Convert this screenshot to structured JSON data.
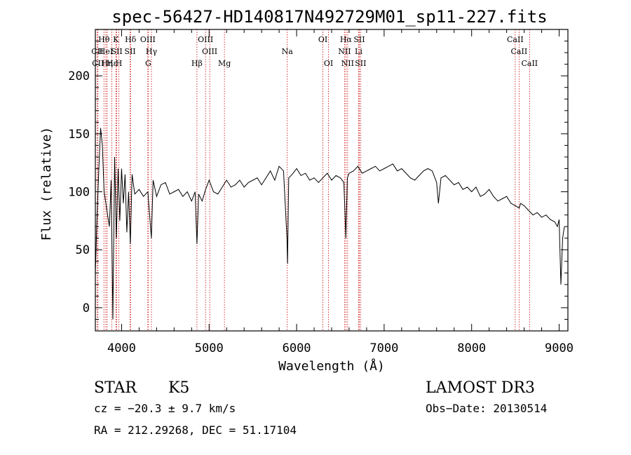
{
  "chart_data": {
    "type": "line",
    "title": "spec-56427-HD140817N492729M01_sp11-227.fits",
    "xlabel": "Wavelength (Å)",
    "ylabel": "Flux (relative)",
    "xlim": [
      3700,
      9100
    ],
    "ylim": [
      -20,
      240
    ],
    "x_ticks": [
      4000,
      5000,
      6000,
      7000,
      8000,
      9000
    ],
    "y_ticks": [
      0,
      50,
      100,
      150,
      200
    ],
    "series": [
      {
        "name": "flux",
        "x": [
          3700,
          3720,
          3740,
          3760,
          3780,
          3800,
          3820,
          3840,
          3860,
          3880,
          3900,
          3920,
          3940,
          3960,
          3980,
          4000,
          4020,
          4040,
          4060,
          4080,
          4100,
          4120,
          4150,
          4200,
          4250,
          4300,
          4340,
          4360,
          4400,
          4450,
          4500,
          4550,
          4600,
          4650,
          4700,
          4750,
          4800,
          4840,
          4861,
          4880,
          4920,
          4960,
          5000,
          5050,
          5100,
          5150,
          5200,
          5250,
          5300,
          5350,
          5400,
          5450,
          5500,
          5550,
          5600,
          5650,
          5700,
          5750,
          5800,
          5850,
          5890,
          5896,
          5910,
          5950,
          6000,
          6050,
          6100,
          6150,
          6200,
          6250,
          6300,
          6350,
          6400,
          6450,
          6500,
          6540,
          6563,
          6580,
          6600,
          6650,
          6700,
          6750,
          6800,
          6850,
          6900,
          6950,
          7000,
          7050,
          7100,
          7150,
          7200,
          7250,
          7300,
          7350,
          7400,
          7450,
          7500,
          7550,
          7600,
          7620,
          7650,
          7700,
          7750,
          7800,
          7850,
          7900,
          7950,
          8000,
          8050,
          8100,
          8150,
          8200,
          8250,
          8300,
          8350,
          8400,
          8450,
          8500,
          8542,
          8560,
          8600,
          8650,
          8700,
          8750,
          8800,
          8850,
          8900,
          8950,
          8980,
          9000,
          9020,
          9040,
          9060
        ],
        "values": [
          30,
          80,
          120,
          155,
          140,
          100,
          90,
          80,
          70,
          110,
          -10,
          130,
          60,
          120,
          75,
          120,
          90,
          115,
          65,
          100,
          55,
          115,
          98,
          102,
          96,
          100,
          60,
          110,
          96,
          106,
          108,
          98,
          100,
          102,
          96,
          100,
          92,
          100,
          55,
          98,
          92,
          102,
          110,
          100,
          98,
          104,
          110,
          104,
          106,
          110,
          104,
          108,
          110,
          112,
          106,
          112,
          118,
          110,
          122,
          118,
          60,
          38,
          112,
          115,
          120,
          114,
          116,
          110,
          112,
          108,
          112,
          116,
          110,
          114,
          112,
          108,
          60,
          112,
          116,
          118,
          122,
          116,
          118,
          120,
          122,
          118,
          120,
          122,
          124,
          118,
          120,
          116,
          112,
          110,
          114,
          118,
          120,
          118,
          108,
          90,
          112,
          114,
          110,
          106,
          108,
          102,
          104,
          100,
          104,
          96,
          98,
          102,
          96,
          92,
          94,
          96,
          90,
          88,
          86,
          90,
          88,
          84,
          80,
          82,
          78,
          80,
          76,
          74,
          70,
          76,
          20,
          60,
          70
        ]
      }
    ],
    "spectral_lines": [
      {
        "label": "CII",
        "wavelength": 3722,
        "row": 2
      },
      {
        "label": "CII",
        "wavelength": 3730,
        "row": 3
      },
      {
        "label": "Hθ",
        "wavelength": 3798,
        "row": 1
      },
      {
        "label": "HeI",
        "wavelength": 3820,
        "row": 2
      },
      {
        "label": "Hη",
        "wavelength": 3835,
        "row": 3
      },
      {
        "label": "Hε",
        "wavelength": 3889,
        "row": 3
      },
      {
        "label": "K",
        "wavelength": 3934,
        "row": 1
      },
      {
        "label": "SII",
        "wavelength": 3945,
        "row": 2
      },
      {
        "label": "H",
        "wavelength": 3969,
        "row": 3
      },
      {
        "label": "Hδ",
        "wavelength": 4102,
        "row": 1
      },
      {
        "label": "SII",
        "wavelength": 4097,
        "row": 2
      },
      {
        "label": "OIII",
        "wavelength": 4300,
        "row": 1
      },
      {
        "label": "Hγ",
        "wavelength": 4341,
        "row": 2
      },
      {
        "label": "G",
        "wavelength": 4304,
        "row": 3
      },
      {
        "label": "Hβ",
        "wavelength": 4861,
        "row": 3
      },
      {
        "label": "OIII",
        "wavelength": 4959,
        "row": 1
      },
      {
        "label": "OIII",
        "wavelength": 5007,
        "row": 2
      },
      {
        "label": "Mg",
        "wavelength": 5175,
        "row": 3
      },
      {
        "label": "Na",
        "wavelength": 5893,
        "row": 2
      },
      {
        "label": "OI",
        "wavelength": 6300,
        "row": 1
      },
      {
        "label": "OI",
        "wavelength": 6364,
        "row": 3
      },
      {
        "label": "Hα",
        "wavelength": 6563,
        "row": 1
      },
      {
        "label": "NII",
        "wavelength": 6548,
        "row": 2
      },
      {
        "label": "NII",
        "wavelength": 6583,
        "row": 3
      },
      {
        "label": "SII",
        "wavelength": 6716,
        "row": 1
      },
      {
        "label": "Li",
        "wavelength": 6708,
        "row": 2
      },
      {
        "label": "SII",
        "wavelength": 6731,
        "row": 3
      },
      {
        "label": "CaII",
        "wavelength": 8498,
        "row": 1
      },
      {
        "label": "CaII",
        "wavelength": 8542,
        "row": 2
      },
      {
        "label": "CaII",
        "wavelength": 8662,
        "row": 3
      }
    ]
  },
  "info": {
    "class": "STAR",
    "subclass": "K5",
    "survey": "LAMOST DR3",
    "cz": "cz = −20.3 ± 9.7 km/s",
    "obs_date": "Obs−Date: 20130514",
    "coords": "RA = 212.29268, DEC =  51.17104"
  },
  "colors": {
    "spectrum": "#000000",
    "line_marker": "#cc0000",
    "axis": "#000000"
  }
}
